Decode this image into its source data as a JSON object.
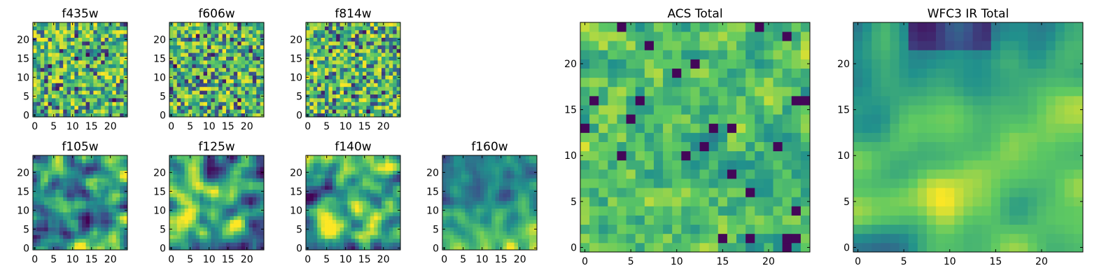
{
  "chart_data": [
    {
      "type": "heatmap",
      "title": "f435w",
      "xticks": [
        0,
        5,
        10,
        15,
        20
      ],
      "yticks": [
        0,
        5,
        10,
        15,
        20
      ],
      "xlim": [
        -0.5,
        24.5
      ],
      "ylim": [
        -0.5,
        24.5
      ],
      "grid_size": 25,
      "texture": "noise",
      "seed": 11
    },
    {
      "type": "heatmap",
      "title": "f606w",
      "xticks": [
        0,
        5,
        10,
        15,
        20
      ],
      "yticks": [
        0,
        5,
        10,
        15,
        20
      ],
      "xlim": [
        -0.5,
        24.5
      ],
      "ylim": [
        -0.5,
        24.5
      ],
      "grid_size": 25,
      "texture": "noise",
      "seed": 23
    },
    {
      "type": "heatmap",
      "title": "f814w",
      "xticks": [
        0,
        5,
        10,
        15,
        20
      ],
      "yticks": [
        0,
        5,
        10,
        15,
        20
      ],
      "xlim": [
        -0.5,
        24.5
      ],
      "ylim": [
        -0.5,
        24.5
      ],
      "grid_size": 25,
      "texture": "noise",
      "seed": 37
    },
    {
      "type": "heatmap",
      "title": "f105w",
      "xticks": [
        0,
        5,
        10,
        15,
        20
      ],
      "yticks": [
        0,
        5,
        10,
        15,
        20
      ],
      "xlim": [
        -0.5,
        24.5
      ],
      "ylim": [
        -0.5,
        24.5
      ],
      "grid_size": 25,
      "texture": "smooth",
      "seed": 41
    },
    {
      "type": "heatmap",
      "title": "f125w",
      "xticks": [
        0,
        5,
        10,
        15,
        20
      ],
      "yticks": [
        0,
        5,
        10,
        15,
        20
      ],
      "xlim": [
        -0.5,
        24.5
      ],
      "ylim": [
        -0.5,
        24.5
      ],
      "grid_size": 25,
      "texture": "smooth",
      "seed": 53
    },
    {
      "type": "heatmap",
      "title": "f140w",
      "xticks": [
        0,
        5,
        10,
        15,
        20
      ],
      "yticks": [
        0,
        5,
        10,
        15,
        20
      ],
      "xlim": [
        -0.5,
        24.5
      ],
      "ylim": [
        -0.5,
        24.5
      ],
      "grid_size": 25,
      "texture": "smooth",
      "seed": 67
    },
    {
      "type": "heatmap",
      "title": "f160w",
      "xticks": [
        0,
        5,
        10,
        15,
        20
      ],
      "yticks": [
        0,
        5,
        10,
        15,
        20
      ],
      "xlim": [
        -0.5,
        24.5
      ],
      "ylim": [
        -0.5,
        24.5
      ],
      "grid_size": 25,
      "texture": "smooth_bright_bottom",
      "seed": 79
    },
    {
      "type": "heatmap",
      "title": "ACS Total",
      "xticks": [
        0,
        5,
        10,
        15,
        20
      ],
      "yticks": [
        0,
        5,
        10,
        15,
        20
      ],
      "xlim": [
        -0.5,
        24.5
      ],
      "ylim": [
        -0.5,
        24.5
      ],
      "grid_size": 25,
      "texture": "noise_mid",
      "seed": 83
    },
    {
      "type": "heatmap",
      "title": "WFC3 IR Total",
      "xticks": [
        0,
        5,
        10,
        15,
        20
      ],
      "yticks": [
        0,
        5,
        10,
        15,
        20
      ],
      "xlim": [
        -0.5,
        24.5
      ],
      "ylim": [
        -0.5,
        24.5
      ],
      "grid_size": 25,
      "texture": "smooth_total",
      "seed": 97
    }
  ],
  "colormap": [
    "#440154",
    "#3b528b",
    "#21918c",
    "#5ec962",
    "#fde725"
  ]
}
